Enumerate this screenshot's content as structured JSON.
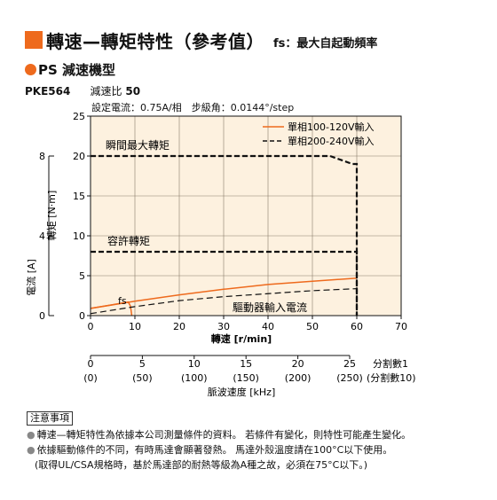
{
  "header": {
    "title": "轉速—轉矩特性（參考值）",
    "fs_note": "fs：最大自起動頻率"
  },
  "section": {
    "title": "PS 減速機型"
  },
  "model": {
    "name": "PKE564",
    "ratio_label": "減速比",
    "ratio_value": "50"
  },
  "setting": "設定電流：0.75A/相　步級角：0.0144°/step",
  "colors": {
    "accent": "#ee6a1d",
    "plot_bg": "#fdf1df",
    "grid": "#8a7c6a"
  },
  "chart_data": {
    "type": "line",
    "xlabel": "轉速 [r/min]",
    "ylabel": "轉矩 [N·m]",
    "y2label": "電流 [A]",
    "xlim": [
      0,
      70
    ],
    "ylim": [
      0,
      25
    ],
    "y2lim": [
      0,
      10
    ],
    "xticks": [
      0,
      10,
      20,
      30,
      40,
      50,
      60,
      70
    ],
    "yticks": [
      0,
      5,
      10,
      15,
      20,
      25
    ],
    "y2ticks": [
      0,
      4,
      8
    ],
    "grid": true,
    "legend_position": "top-right",
    "series": [
      {
        "name": "單相100-120V輸入",
        "style": "solid",
        "color": "#ee6a1d",
        "x": [
          0,
          10,
          20,
          30,
          40,
          50,
          60
        ],
        "y": [
          0.9,
          1.8,
          2.6,
          3.3,
          3.9,
          4.3,
          4.7
        ]
      },
      {
        "name": "單相200-240V輸入",
        "style": "dashed",
        "color": "#111111",
        "x": [
          0,
          54,
          59,
          60,
          60
        ],
        "y": [
          20,
          20,
          19,
          19,
          0
        ]
      },
      {
        "name": "容許轉矩",
        "style": "dashed",
        "color": "#111111",
        "x": [
          0,
          60,
          60
        ],
        "y": [
          8,
          8,
          0
        ]
      },
      {
        "name": "fs",
        "style": "solid",
        "color": "#ee6a1d",
        "x": [
          0,
          8.5,
          9,
          9.3
        ],
        "y": [
          0.9,
          1.7,
          1.2,
          0
        ]
      },
      {
        "name": "驅動器輸入電流",
        "style": "dashed",
        "color": "#111111",
        "axis": "y2",
        "x": [
          0,
          10,
          20,
          30,
          40,
          50,
          60
        ],
        "y": [
          0.1,
          0.45,
          0.75,
          0.95,
          1.1,
          1.25,
          1.35
        ]
      }
    ],
    "annotations": {
      "instant_max": "瞬間最大轉矩",
      "allowable": "容許轉矩",
      "fs": "fs",
      "driver_current": "驅動器輸入電流"
    },
    "pulse_axis": {
      "label": "脈波速度 [kHz]",
      "ticks": [
        {
          "value": "0",
          "paren": "(0)"
        },
        {
          "value": "5",
          "paren": "(50)"
        },
        {
          "value": "10",
          "paren": "(100)"
        },
        {
          "value": "15",
          "paren": "(150)"
        },
        {
          "value": "20",
          "paren": "(200)"
        },
        {
          "value": "25",
          "paren": "(250)"
        }
      ],
      "div1": "分割數1",
      "div10": "(分割數10)"
    }
  },
  "notes": {
    "title": "注意事項",
    "items": [
      "轉速—轉矩特性為依據本公司測量條件的資料。 若條件有變化，則特性可能產生變化。",
      "依據驅動條件的不同，有時馬達會顯著發熱。 馬達外殼溫度請在100°C以下使用。",
      "(取得UL/CSA規格時，基於馬達部的耐熱等級為A種之故，必須在75°C以下。)"
    ]
  }
}
